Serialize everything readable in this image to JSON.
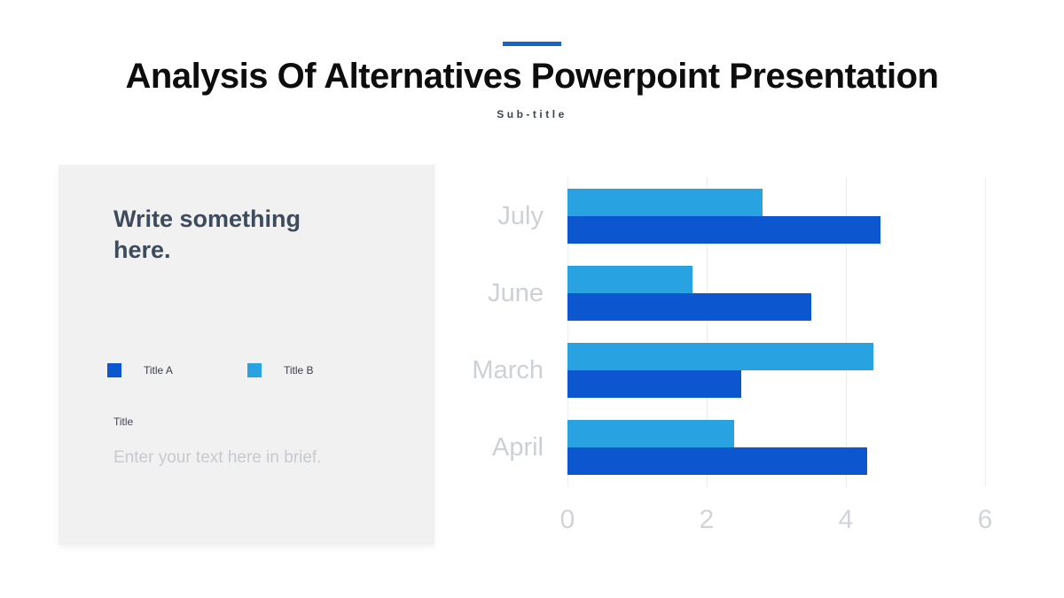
{
  "slide": {
    "title": "Analysis Of Alternatives Powerpoint Presentation",
    "subtitle": "Sub-title",
    "accent_color": "#1565c6"
  },
  "panel": {
    "heading": "Write something here.",
    "legend": [
      {
        "label": "Title A",
        "color": "#0c57d0"
      },
      {
        "label": "Title B",
        "color": "#28a2e0"
      }
    ],
    "field_label": "Title",
    "field_placeholder": "Enter your text here in brief."
  },
  "chart_data": {
    "type": "bar",
    "orientation": "horizontal",
    "title": "",
    "xlabel": "",
    "ylabel": "",
    "categories": [
      "July",
      "June",
      "March",
      "April"
    ],
    "series": [
      {
        "name": "Title A",
        "color": "#0c57d0",
        "values": [
          4.5,
          3.5,
          2.5,
          4.3
        ]
      },
      {
        "name": "Title B",
        "color": "#28a2e0",
        "values": [
          2.8,
          1.8,
          4.4,
          2.4
        ]
      }
    ],
    "bar_order_in_cluster": [
      "Title B",
      "Title A"
    ],
    "xlim": [
      0,
      6
    ],
    "xticks": [
      0,
      2,
      4,
      6
    ],
    "grid": true,
    "gridline_color": "#eaeced",
    "legend_position": "left-panel"
  }
}
